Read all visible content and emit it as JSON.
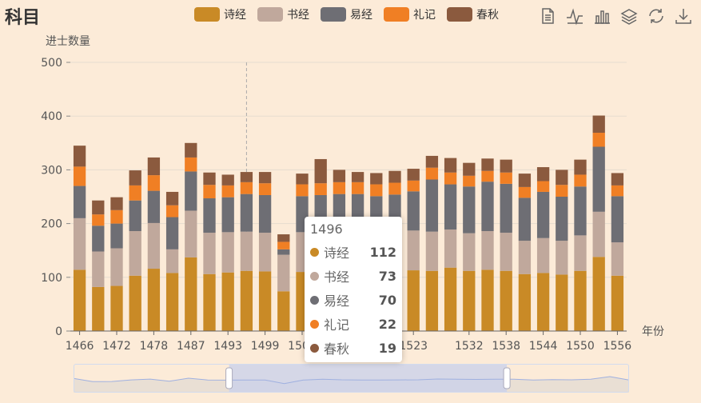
{
  "title": "科目",
  "colors": {
    "background": "#fcebd8",
    "series": [
      "#c98a26",
      "#c0a89c",
      "#6e6e74",
      "#f07f24",
      "#8b5a3e"
    ]
  },
  "toolbox": [
    "data-view-icon",
    "line-chart-icon",
    "bar-chart-icon",
    "stack-icon",
    "restore-icon",
    "download-icon"
  ],
  "chart_data": {
    "type": "bar",
    "stacked": true,
    "ylabel": "进士数量",
    "xlabel": "年份",
    "ylim": [
      0,
      500
    ],
    "yticks": [
      0,
      100,
      200,
      300,
      400,
      500
    ],
    "grid": true,
    "legend_position": "top",
    "categories": [
      1466,
      1469,
      1472,
      1475,
      1478,
      1481,
      1487,
      1490,
      1493,
      1496,
      1499,
      1502,
      1505,
      1508,
      1511,
      1514,
      1517,
      1520,
      1523,
      1526,
      1529,
      1532,
      1535,
      1538,
      1541,
      1544,
      1547,
      1550,
      1553,
      1556
    ],
    "xtick_labels": [
      "1466",
      "1472",
      "1478",
      "1487",
      "1493",
      "1499",
      "1505",
      "1511",
      "1517",
      "1523",
      "1532",
      "1538",
      "1544",
      "1550",
      "1556"
    ],
    "series": [
      {
        "name": "诗经",
        "values": [
          114,
          82,
          84,
          103,
          116,
          108,
          137,
          106,
          109,
          112,
          111,
          74,
          110,
          112,
          111,
          112,
          110,
          111,
          113,
          112,
          118,
          112,
          114,
          112,
          106,
          108,
          105,
          112,
          138,
          103
        ]
      },
      {
        "name": "书经",
        "values": [
          96,
          66,
          70,
          83,
          85,
          44,
          87,
          77,
          75,
          73,
          72,
          68,
          74,
          70,
          74,
          73,
          72,
          73,
          74,
          73,
          71,
          70,
          72,
          71,
          62,
          65,
          63,
          66,
          84,
          62
        ]
      },
      {
        "name": "易经",
        "values": [
          60,
          48,
          46,
          57,
          60,
          60,
          73,
          64,
          65,
          70,
          70,
          10,
          67,
          71,
          70,
          70,
          69,
          70,
          73,
          97,
          84,
          87,
          92,
          91,
          80,
          86,
          82,
          91,
          121,
          86
        ]
      },
      {
        "name": "礼记",
        "values": [
          36,
          21,
          25,
          28,
          29,
          22,
          26,
          25,
          22,
          22,
          22,
          14,
          22,
          22,
          22,
          22,
          22,
          22,
          20,
          22,
          22,
          20,
          20,
          21,
          20,
          20,
          22,
          22,
          26,
          20
        ]
      },
      {
        "name": "春秋",
        "values": [
          39,
          26,
          24,
          28,
          33,
          25,
          27,
          23,
          20,
          19,
          21,
          14,
          20,
          45,
          23,
          19,
          21,
          22,
          22,
          22,
          27,
          24,
          23,
          24,
          25,
          26,
          28,
          28,
          32,
          23
        ]
      }
    ],
    "highlighted_index": 9
  },
  "tooltip": {
    "title": "1496",
    "rows": [
      {
        "name": "诗经",
        "value": "112"
      },
      {
        "name": "书经",
        "value": "73"
      },
      {
        "name": "易经",
        "value": "70"
      },
      {
        "name": "礼记",
        "value": "22"
      },
      {
        "name": "春秋",
        "value": "19"
      }
    ]
  },
  "data_zoom": {
    "start_fraction": 0.28,
    "end_fraction": 0.78
  }
}
